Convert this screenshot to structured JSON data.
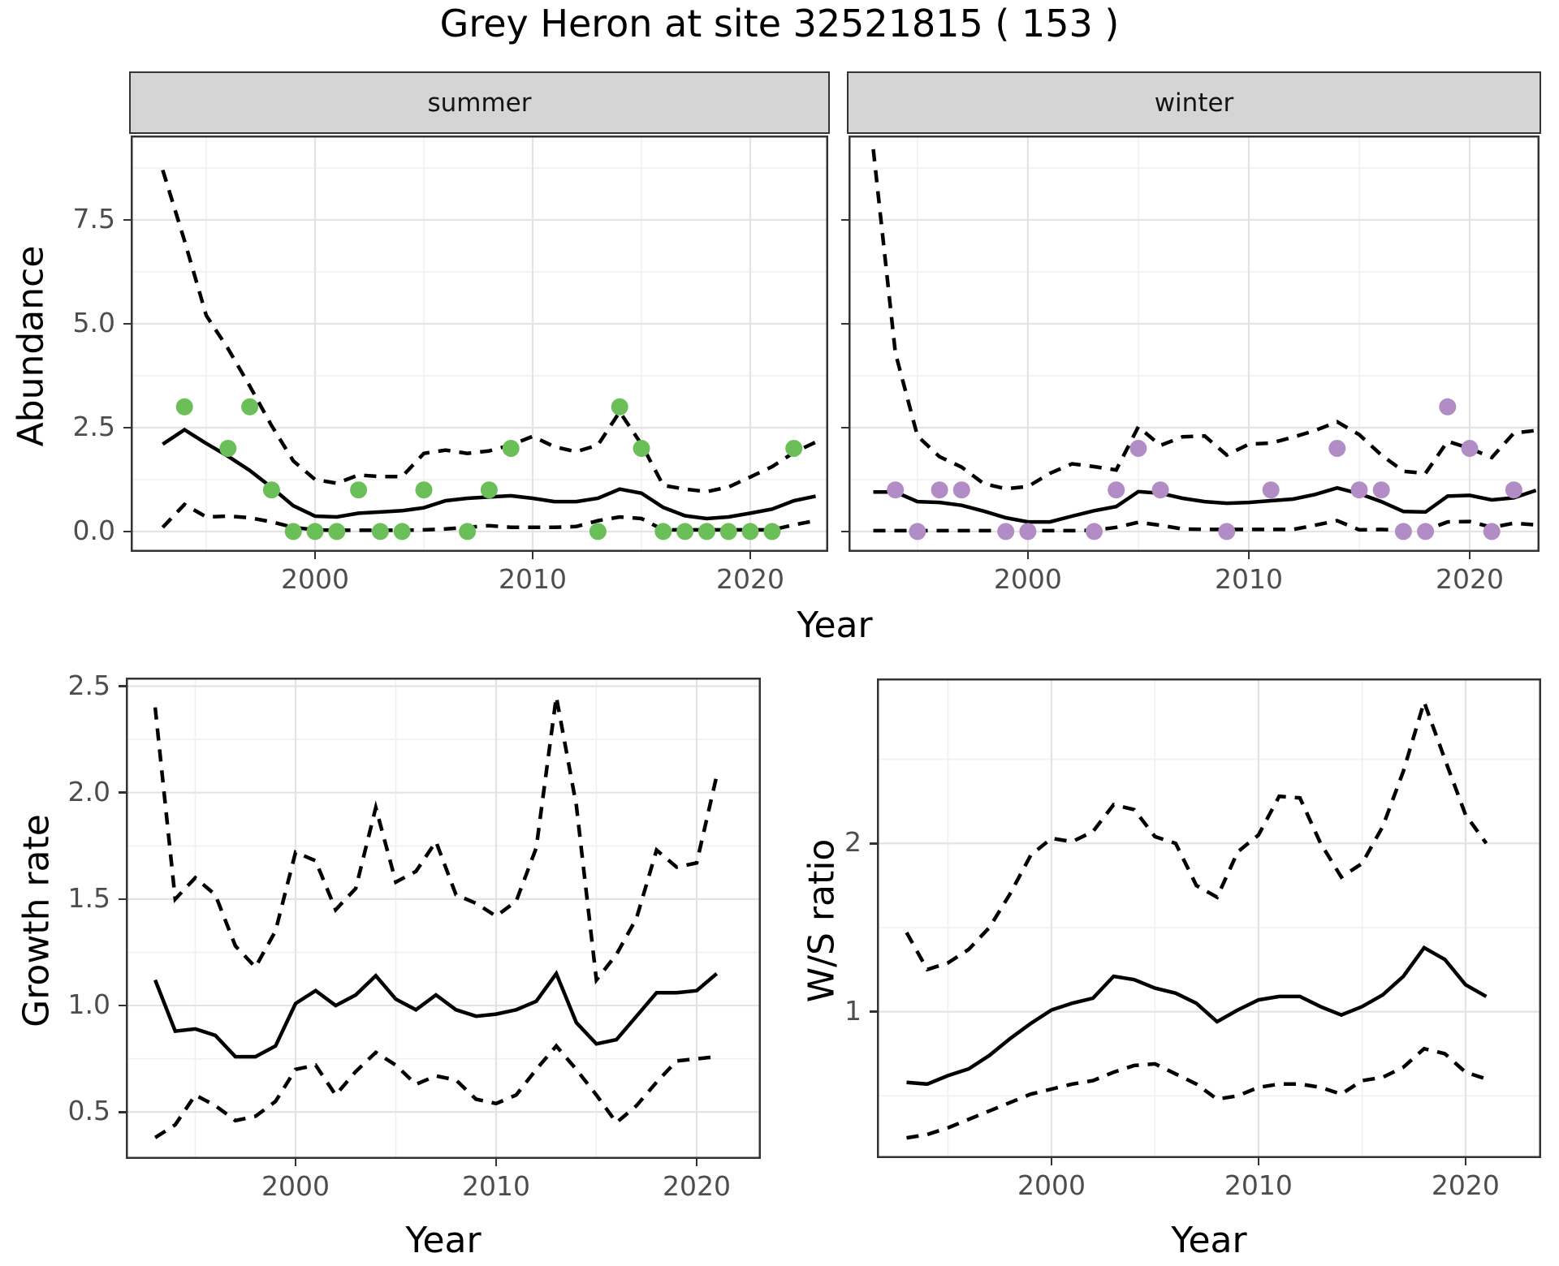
{
  "title": "Grey Heron at site 32521815 ( 153 )",
  "colors": {
    "summer_point": "#6abf59",
    "winter_point": "#b28cc4",
    "line": "#000000",
    "strip_bg": "#d5d5d5",
    "grid_major": "#e3e3e3",
    "grid_minor": "#f0f0f0",
    "panel_border": "#333333",
    "tick_text": "#4d4d4d"
  },
  "chart_data": [
    {
      "panel": "abundance-summer",
      "type": "line",
      "facet_label": "summer",
      "ylabel": "Abundance",
      "xlabel": "Year",
      "xlim": [
        1991.53,
        2023.58
      ],
      "ylim": [
        -0.49,
        9.53
      ],
      "x_ticks": [
        2000,
        2010,
        2020
      ],
      "x_tick_labels": [
        "2000",
        "2010",
        "2020"
      ],
      "x_minor": [
        1995,
        2005,
        2015
      ],
      "y_ticks": [
        0.0,
        2.5,
        5.0,
        7.5
      ],
      "y_tick_labels": [
        "0.0",
        "2.5",
        "5.0",
        "7.5"
      ],
      "y_minor": [
        1.25,
        3.75,
        6.25,
        8.75
      ],
      "x": [
        1993,
        1994,
        1995,
        1996,
        1997,
        1998,
        1999,
        2000,
        2001,
        2002,
        2003,
        2004,
        2005,
        2006,
        2007,
        2008,
        2009,
        2010,
        2011,
        2012,
        2013,
        2014,
        2015,
        2016,
        2017,
        2018,
        2019,
        2020,
        2021,
        2022,
        2023
      ],
      "series": [
        {
          "name": "mean",
          "style": "solid",
          "values": [
            2.1,
            2.45,
            2.12,
            1.81,
            1.47,
            1.06,
            0.62,
            0.37,
            0.35,
            0.44,
            0.47,
            0.5,
            0.57,
            0.74,
            0.8,
            0.83,
            0.86,
            0.8,
            0.72,
            0.72,
            0.8,
            1.02,
            0.92,
            0.58,
            0.38,
            0.31,
            0.35,
            0.44,
            0.54,
            0.74,
            0.85
          ]
        },
        {
          "name": "upper-ci",
          "style": "dashed",
          "values": [
            8.7,
            7.0,
            5.2,
            4.4,
            3.5,
            2.55,
            1.7,
            1.25,
            1.16,
            1.36,
            1.32,
            1.32,
            1.88,
            1.96,
            1.88,
            1.94,
            2.08,
            2.29,
            2.04,
            1.92,
            2.08,
            2.88,
            2.1,
            1.11,
            1.02,
            0.96,
            1.07,
            1.31,
            1.56,
            1.9,
            2.15
          ]
        },
        {
          "name": "lower-ci",
          "style": "dashed",
          "values": [
            0.1,
            0.65,
            0.35,
            0.37,
            0.33,
            0.23,
            0.1,
            0.04,
            0.03,
            0.03,
            0.03,
            0.03,
            0.04,
            0.06,
            0.1,
            0.14,
            0.1,
            0.1,
            0.1,
            0.12,
            0.26,
            0.35,
            0.31,
            0.04,
            0.04,
            0.04,
            0.04,
            0.04,
            0.04,
            0.16,
            0.26
          ]
        }
      ],
      "points": {
        "name": "observed-counts",
        "color_key": "summer_point",
        "x": [
          1994,
          1996,
          1997,
          1998,
          1999,
          2000,
          2001,
          2002,
          2003,
          2004,
          2005,
          2007,
          2008,
          2009,
          2013,
          2014,
          2015,
          2016,
          2017,
          2018,
          2019,
          2020,
          2021,
          2022
        ],
        "y": [
          3,
          2,
          3,
          1,
          0,
          0,
          0,
          1,
          0,
          0,
          1,
          0,
          1,
          2,
          0,
          3,
          2,
          0,
          0,
          0,
          0,
          0,
          0,
          2
        ]
      }
    },
    {
      "panel": "abundance-winter",
      "type": "line",
      "facet_label": "winter",
      "ylabel": "Abundance",
      "xlabel": "Year",
      "xlim": [
        1991.88,
        2023.16
      ],
      "ylim": [
        -0.49,
        9.53
      ],
      "x_ticks": [
        2000,
        2010,
        2020
      ],
      "x_tick_labels": [
        "2000",
        "2010",
        "2020"
      ],
      "x_minor": [
        1995,
        2005,
        2015
      ],
      "y_ticks": [
        0.0,
        2.5,
        5.0,
        7.5
      ],
      "y_tick_labels": [],
      "y_minor": [
        1.25,
        3.75,
        6.25,
        8.75
      ],
      "x": [
        1993,
        1994,
        1995,
        1996,
        1997,
        1998,
        1999,
        2000,
        2001,
        2002,
        2003,
        2004,
        2005,
        2006,
        2007,
        2008,
        2009,
        2010,
        2011,
        2012,
        2013,
        2014,
        2015,
        2016,
        2017,
        2018,
        2019,
        2020,
        2021,
        2022,
        2023
      ],
      "series": [
        {
          "name": "mean",
          "style": "solid",
          "values": [
            0.95,
            0.95,
            0.72,
            0.7,
            0.63,
            0.49,
            0.33,
            0.23,
            0.23,
            0.37,
            0.5,
            0.6,
            0.96,
            0.92,
            0.8,
            0.72,
            0.68,
            0.7,
            0.74,
            0.78,
            0.89,
            1.05,
            0.91,
            0.72,
            0.48,
            0.47,
            0.85,
            0.87,
            0.76,
            0.81,
            0.99
          ]
        },
        {
          "name": "upper-ci",
          "style": "dashed",
          "values": [
            9.2,
            4.3,
            2.3,
            1.8,
            1.55,
            1.15,
            1.03,
            1.08,
            1.4,
            1.63,
            1.56,
            1.48,
            2.52,
            2.07,
            2.28,
            2.3,
            1.84,
            2.1,
            2.13,
            2.27,
            2.43,
            2.64,
            2.33,
            1.84,
            1.45,
            1.4,
            2.17,
            2.0,
            1.78,
            2.37,
            2.43
          ]
        },
        {
          "name": "lower-ci",
          "style": "dashed",
          "values": [
            0.02,
            0.02,
            0.02,
            0.02,
            0.02,
            0.02,
            0.02,
            0.02,
            0.02,
            0.02,
            0.03,
            0.1,
            0.22,
            0.15,
            0.06,
            0.05,
            0.05,
            0.05,
            0.05,
            0.05,
            0.15,
            0.26,
            0.04,
            0.05,
            0.03,
            0.03,
            0.23,
            0.24,
            0.1,
            0.2,
            0.16
          ]
        }
      ],
      "points": {
        "name": "observed-counts",
        "color_key": "winter_point",
        "x": [
          1994,
          1995,
          1996,
          1997,
          1999,
          2000,
          2003,
          2004,
          2005,
          2006,
          2009,
          2011,
          2014,
          2015,
          2016,
          2017,
          2018,
          2019,
          2020,
          2021,
          2022
        ],
        "y": [
          1,
          0,
          1,
          1,
          0,
          0,
          0,
          1,
          2,
          1,
          0,
          1,
          2,
          1,
          1,
          0,
          0,
          3,
          2,
          0,
          1
        ]
      }
    },
    {
      "panel": "growth-rate",
      "type": "line",
      "facet_label": "",
      "ylabel": "Growth rate",
      "xlabel": "Year",
      "xlim": [
        1991.54,
        2023.2
      ],
      "ylim": [
        0.28,
        2.54
      ],
      "x_ticks": [
        2000,
        2010,
        2020
      ],
      "x_tick_labels": [
        "2000",
        "2010",
        "2020"
      ],
      "x_minor": [
        1995,
        2005,
        2015
      ],
      "y_ticks": [
        0.5,
        1.0,
        1.5,
        2.0,
        2.5
      ],
      "y_tick_labels": [
        "0.5",
        "1.0",
        "1.5",
        "2.0",
        "2.5"
      ],
      "y_minor": [
        0.75,
        1.25,
        1.75,
        2.25
      ],
      "x": [
        1993,
        1994,
        1995,
        1996,
        1997,
        1998,
        1999,
        2000,
        2001,
        2002,
        2003,
        2004,
        2005,
        2006,
        2007,
        2008,
        2009,
        2010,
        2011,
        2012,
        2013,
        2014,
        2015,
        2016,
        2017,
        2018,
        2019,
        2020,
        2021
      ],
      "series": [
        {
          "name": "mean",
          "style": "solid",
          "values": [
            1.12,
            0.88,
            0.89,
            0.86,
            0.76,
            0.76,
            0.81,
            1.01,
            1.07,
            1.0,
            1.05,
            1.14,
            1.03,
            0.98,
            1.05,
            0.98,
            0.95,
            0.96,
            0.98,
            1.02,
            1.15,
            0.92,
            0.82,
            0.84,
            0.95,
            1.06,
            1.06,
            1.07,
            1.15
          ]
        },
        {
          "name": "upper-ci",
          "style": "dashed",
          "values": [
            2.4,
            1.5,
            1.6,
            1.52,
            1.28,
            1.18,
            1.35,
            1.72,
            1.68,
            1.45,
            1.55,
            1.93,
            1.58,
            1.63,
            1.77,
            1.52,
            1.48,
            1.42,
            1.49,
            1.74,
            2.45,
            1.94,
            1.12,
            1.24,
            1.41,
            1.73,
            1.65,
            1.67,
            2.08
          ]
        },
        {
          "name": "lower-ci",
          "style": "dashed",
          "values": [
            0.38,
            0.44,
            0.58,
            0.53,
            0.46,
            0.48,
            0.55,
            0.7,
            0.72,
            0.58,
            0.69,
            0.78,
            0.72,
            0.63,
            0.67,
            0.65,
            0.56,
            0.54,
            0.58,
            0.7,
            0.81,
            0.7,
            0.58,
            0.45,
            0.53,
            0.64,
            0.74,
            0.75,
            0.76
          ]
        }
      ],
      "points": null
    },
    {
      "panel": "ws-ratio",
      "type": "line",
      "facet_label": "",
      "ylabel": "W/S ratio",
      "xlabel": "Year",
      "xlim": [
        1991.57,
        2023.65
      ],
      "ylim": [
        0.13,
        2.98
      ],
      "x_ticks": [
        2000,
        2010,
        2020
      ],
      "x_tick_labels": [
        "2000",
        "2010",
        "2020"
      ],
      "x_minor": [
        1995,
        2005,
        2015
      ],
      "y_ticks": [
        1,
        2
      ],
      "y_tick_labels": [
        "1",
        "2"
      ],
      "y_minor": [
        0.5,
        1.5,
        2.5
      ],
      "x": [
        1993,
        1994,
        1995,
        1996,
        1997,
        1998,
        1999,
        2000,
        2001,
        2002,
        2003,
        2004,
        2005,
        2006,
        2007,
        2008,
        2009,
        2010,
        2011,
        2012,
        2013,
        2014,
        2015,
        2016,
        2017,
        2018,
        2019,
        2020,
        2021
      ],
      "series": [
        {
          "name": "mean",
          "style": "solid",
          "values": [
            0.58,
            0.57,
            0.62,
            0.66,
            0.74,
            0.84,
            0.93,
            1.01,
            1.05,
            1.08,
            1.21,
            1.19,
            1.14,
            1.11,
            1.05,
            0.94,
            1.01,
            1.07,
            1.09,
            1.09,
            1.03,
            0.98,
            1.03,
            1.1,
            1.21,
            1.38,
            1.31,
            1.16,
            1.09
          ]
        },
        {
          "name": "upper-ci",
          "style": "dashed",
          "values": [
            1.47,
            1.25,
            1.29,
            1.37,
            1.5,
            1.7,
            1.93,
            2.03,
            2.01,
            2.07,
            2.23,
            2.2,
            2.04,
            2.0,
            1.75,
            1.68,
            1.95,
            2.05,
            2.28,
            2.27,
            2.0,
            1.8,
            1.88,
            2.1,
            2.43,
            2.84,
            2.5,
            2.17,
            2.0
          ]
        },
        {
          "name": "lower-ci",
          "style": "dashed",
          "values": [
            0.25,
            0.27,
            0.31,
            0.36,
            0.41,
            0.46,
            0.51,
            0.54,
            0.57,
            0.59,
            0.64,
            0.68,
            0.69,
            0.63,
            0.57,
            0.48,
            0.5,
            0.55,
            0.57,
            0.57,
            0.55,
            0.51,
            0.59,
            0.61,
            0.67,
            0.78,
            0.75,
            0.64,
            0.6
          ]
        }
      ],
      "points": null
    }
  ]
}
